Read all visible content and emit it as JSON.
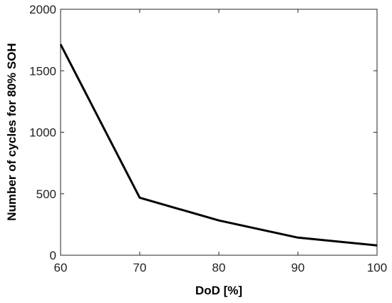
{
  "chart_data": {
    "type": "line",
    "title": "",
    "xlabel": "DoD [%]",
    "ylabel": "Number of cycles for 80% SOH",
    "xlim": [
      60,
      100
    ],
    "ylim": [
      0,
      2000
    ],
    "x_ticks": [
      "60",
      "70",
      "80",
      "90",
      "100"
    ],
    "y_ticks": [
      "0",
      "500",
      "1000",
      "1500",
      "2000"
    ],
    "grid": false,
    "legend": "none",
    "series": [
      {
        "color": "#000000",
        "x": [
          60,
          70,
          80,
          90,
          100
        ],
        "y": [
          1715,
          468,
          283,
          143,
          80
        ]
      }
    ]
  }
}
